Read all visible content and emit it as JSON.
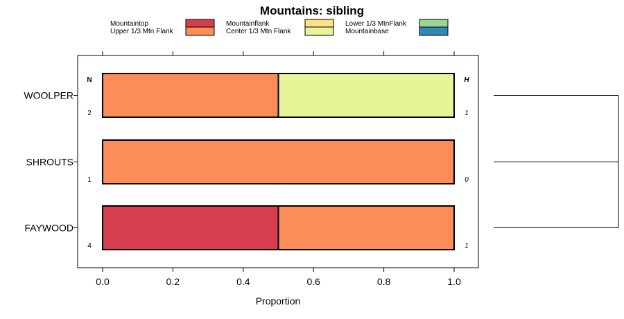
{
  "chart_data": {
    "type": "bar",
    "orientation": "horizontal-stacked",
    "title": "Mountains: sibling",
    "xlabel": "Proportion",
    "ylabel": "",
    "xlim": [
      0,
      1
    ],
    "x_ticks": [
      "0.0",
      "0.2",
      "0.4",
      "0.6",
      "0.8",
      "1.0"
    ],
    "x_tick_values": [
      0,
      0.2,
      0.4,
      0.6,
      0.8,
      1.0
    ],
    "n_header": "N",
    "h_header": "H",
    "legend": [
      {
        "name": "Mountaintop",
        "color": "#D53E4F"
      },
      {
        "name": "Upper 1/3 Mtn Flank",
        "color": "#FC8D59"
      },
      {
        "name": "Mountainflank",
        "color": "#FEE08B"
      },
      {
        "name": "Center 1/3 Mtn Flank",
        "color": "#E6F598"
      },
      {
        "name": "Lower 1/3 MtnFlank",
        "color": "#99D594"
      },
      {
        "name": "Mountainbase",
        "color": "#3288BD"
      }
    ],
    "categories": [
      "WOOLPER",
      "SHROUTS",
      "FAYWOOD"
    ],
    "n": [
      "2",
      "1",
      "4"
    ],
    "h": [
      "1",
      "0",
      "1"
    ],
    "series": [
      {
        "name": "Mountaintop",
        "values": [
          0,
          0,
          0.5
        ]
      },
      {
        "name": "Upper 1/3 Mtn Flank",
        "values": [
          0.5,
          1.0,
          0.5
        ]
      },
      {
        "name": "Mountainflank",
        "values": [
          0,
          0,
          0
        ]
      },
      {
        "name": "Center 1/3 Mtn Flank",
        "values": [
          0.5,
          0,
          0
        ]
      },
      {
        "name": "Lower 1/3 MtnFlank",
        "values": [
          0,
          0,
          0
        ]
      },
      {
        "name": "Mountainbase",
        "values": [
          0,
          0,
          0
        ]
      }
    ]
  }
}
